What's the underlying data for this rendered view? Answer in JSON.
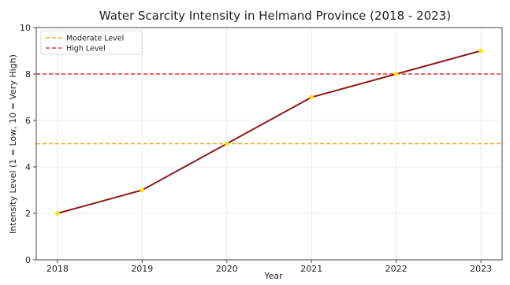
{
  "chart_data": {
    "type": "line",
    "title": "Water Scarcity Intensity in Helmand Province (2018 - 2023)",
    "xlabel": "Year",
    "ylabel": "Intensity Level (1 = Low, 10 = Very High)",
    "x": [
      2018,
      2019,
      2020,
      2021,
      2022,
      2023
    ],
    "xlim": [
      2017.75,
      2023.25
    ],
    "ylim": [
      0,
      10
    ],
    "yticks": [
      0,
      2,
      4,
      6,
      8,
      10
    ],
    "grid": true,
    "legend_position": "top-left",
    "series": [
      {
        "values": [
          2,
          3,
          5,
          7,
          8,
          9
        ],
        "color": "#8b1a1a",
        "marker_color": "#ffe100"
      }
    ],
    "reference_lines": [
      {
        "name": "Moderate Level",
        "y": 5,
        "color": "#f5a623",
        "style": "dashed"
      },
      {
        "name": "High Level",
        "y": 8,
        "color": "#e8322d",
        "style": "dashed"
      }
    ]
  }
}
